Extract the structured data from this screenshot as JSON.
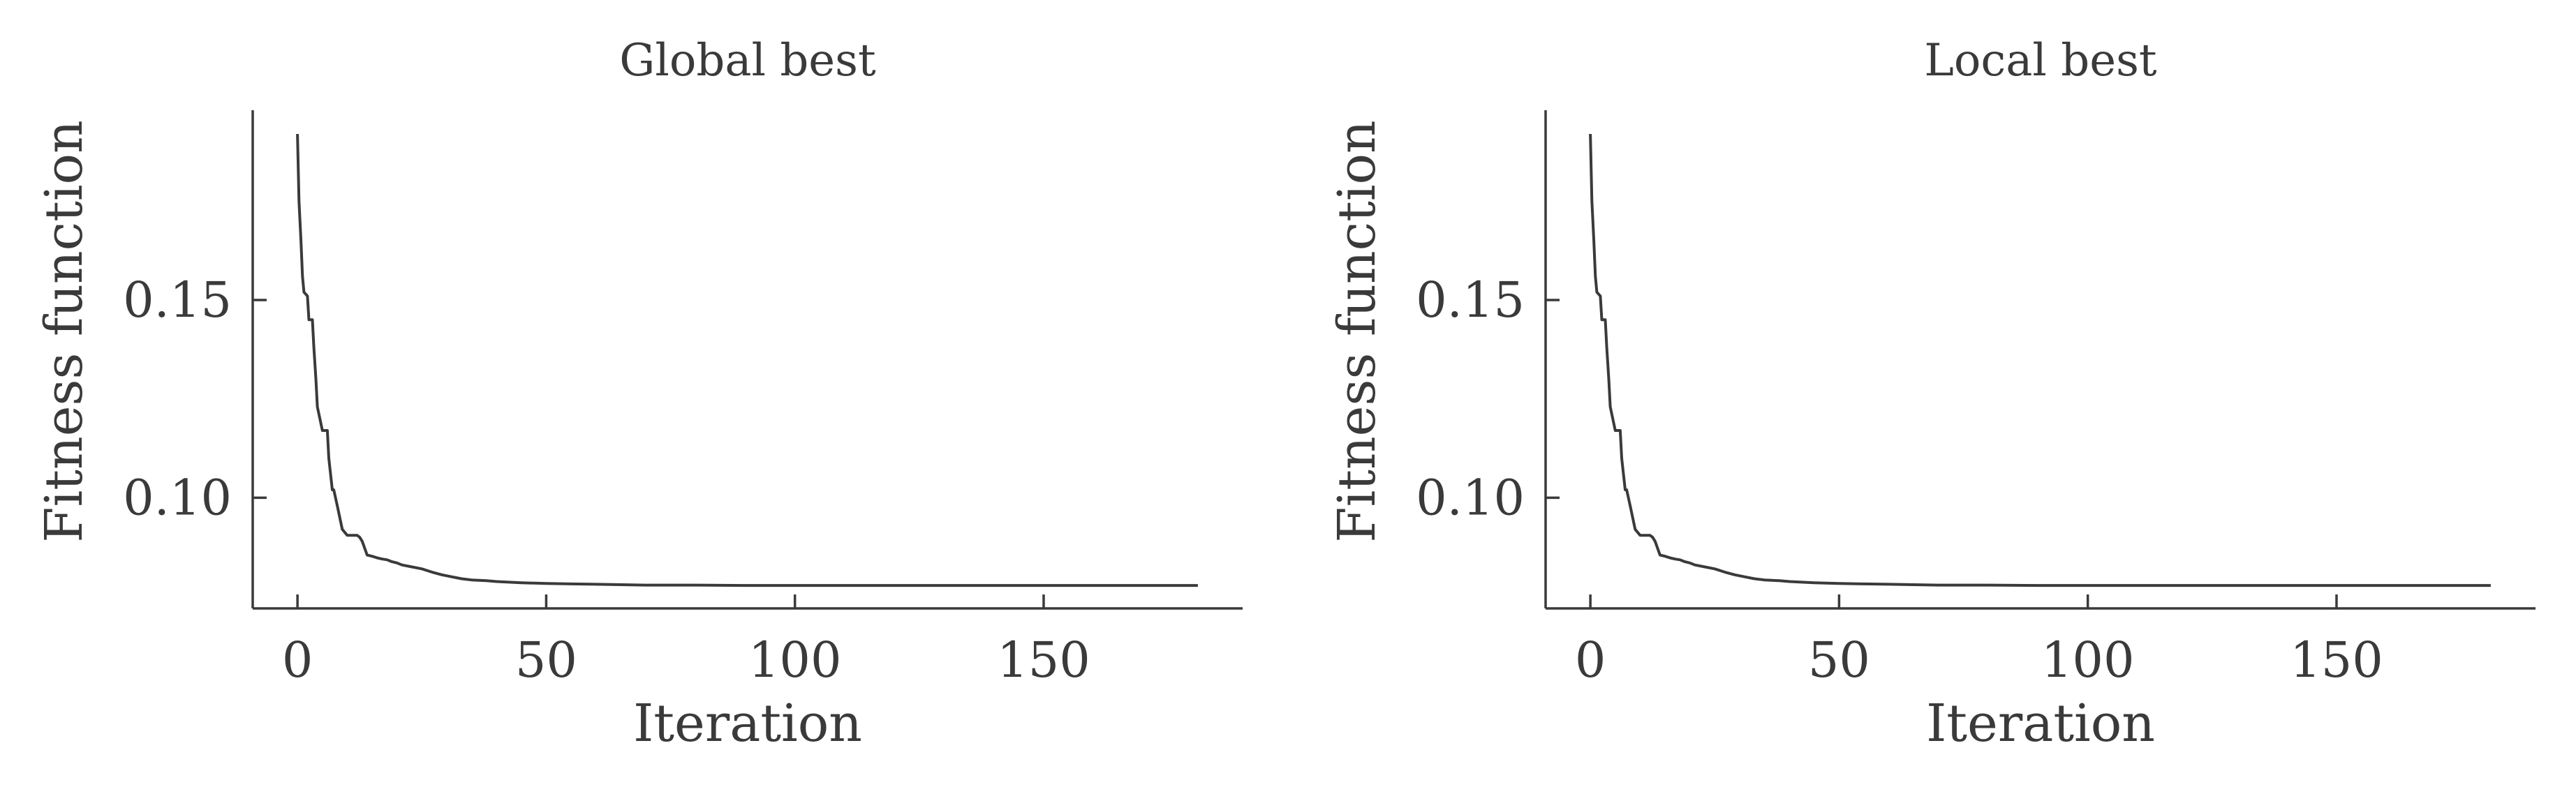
{
  "chart_data": [
    {
      "type": "line",
      "title": "Global best",
      "xlabel": "Iteration",
      "ylabel": "Fitness function",
      "xlim": [
        -9,
        190
      ],
      "ylim": [
        0.072,
        0.198
      ],
      "xticks": [
        0,
        50,
        100,
        150
      ],
      "xtick_labels": [
        "0",
        "50",
        "100",
        "150"
      ],
      "yticks": [
        0.1,
        0.15
      ],
      "ytick_labels": [
        "0.10",
        "0.15"
      ],
      "grid": false,
      "series": [
        {
          "color": "#3a3a3a",
          "x": [
            0,
            0.3,
            0.7,
            1,
            1.3,
            2,
            2.3,
            3,
            3.3,
            3.7,
            4,
            4.5,
            5,
            6,
            6.3,
            7,
            7.3,
            8,
            8.5,
            9,
            10,
            11,
            12,
            12.5,
            13,
            14,
            15,
            16,
            17,
            18,
            19,
            20,
            21,
            23,
            25,
            27,
            29,
            31,
            33,
            35,
            38,
            40,
            45,
            50,
            55,
            60,
            65,
            70,
            80,
            90,
            100,
            120,
            140,
            160,
            181
          ],
          "y": [
            0.192,
            0.175,
            0.165,
            0.156,
            0.152,
            0.151,
            0.145,
            0.145,
            0.138,
            0.13,
            0.123,
            0.12,
            0.117,
            0.117,
            0.11,
            0.102,
            0.102,
            0.098,
            0.095,
            0.092,
            0.0905,
            0.0905,
            0.0905,
            0.09,
            0.089,
            0.0855,
            0.0852,
            0.0848,
            0.0845,
            0.0843,
            0.0838,
            0.0835,
            0.083,
            0.0825,
            0.082,
            0.0812,
            0.0805,
            0.08,
            0.0795,
            0.0792,
            0.079,
            0.0788,
            0.0785,
            0.0783,
            0.0782,
            0.0781,
            0.078,
            0.0779,
            0.0779,
            0.0778,
            0.0778,
            0.0778,
            0.0778,
            0.0778,
            0.0778
          ]
        }
      ]
    },
    {
      "type": "line",
      "title": "Local best",
      "xlabel": "Iteration",
      "ylabel": "Fitness function",
      "xlim": [
        -9,
        190
      ],
      "ylim": [
        0.072,
        0.198
      ],
      "xticks": [
        0,
        50,
        100,
        150
      ],
      "xtick_labels": [
        "0",
        "50",
        "100",
        "150"
      ],
      "yticks": [
        0.1,
        0.15
      ],
      "ytick_labels": [
        "0.10",
        "0.15"
      ],
      "grid": false,
      "series": [
        {
          "color": "#3a3a3a",
          "x": [
            0,
            0.3,
            0.7,
            1,
            1.3,
            2,
            2.3,
            3,
            3.3,
            3.7,
            4,
            4.5,
            5,
            6,
            6.3,
            7,
            7.3,
            8,
            8.5,
            9,
            10,
            11,
            12,
            12.5,
            13,
            14,
            15,
            16,
            17,
            18,
            19,
            20,
            21,
            23,
            25,
            27,
            29,
            31,
            33,
            35,
            38,
            40,
            45,
            50,
            55,
            60,
            65,
            70,
            80,
            90,
            100,
            120,
            140,
            160,
            181
          ],
          "y": [
            0.192,
            0.175,
            0.165,
            0.156,
            0.152,
            0.151,
            0.145,
            0.145,
            0.138,
            0.13,
            0.123,
            0.12,
            0.117,
            0.117,
            0.11,
            0.102,
            0.102,
            0.098,
            0.095,
            0.092,
            0.0905,
            0.0905,
            0.0905,
            0.09,
            0.089,
            0.0855,
            0.0852,
            0.0848,
            0.0845,
            0.0843,
            0.0838,
            0.0835,
            0.083,
            0.0825,
            0.082,
            0.0812,
            0.0805,
            0.08,
            0.0795,
            0.0792,
            0.079,
            0.0788,
            0.0785,
            0.0783,
            0.0782,
            0.0781,
            0.078,
            0.0779,
            0.0779,
            0.0778,
            0.0778,
            0.0778,
            0.0778,
            0.0778,
            0.0778
          ]
        }
      ]
    }
  ]
}
